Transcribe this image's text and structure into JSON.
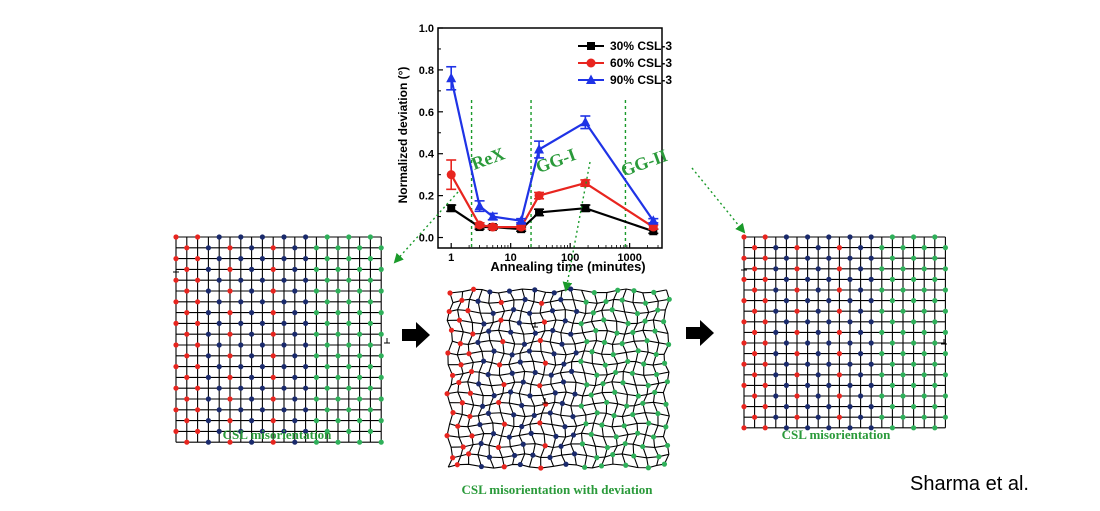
{
  "chart_data": {
    "type": "line",
    "ylabel": "Normalized deviation (°)",
    "xlabel": "Annealing time (minutes)",
    "x_scale": "log",
    "xlim": [
      0.6,
      3500
    ],
    "ylim": [
      -0.05,
      1.0
    ],
    "x_ticks": [
      1,
      10,
      100,
      1000
    ],
    "x_tick_labels": [
      "1",
      "10",
      "100",
      "1000"
    ],
    "y_ticks": [
      0.0,
      0.2,
      0.4,
      0.6,
      0.8,
      1.0
    ],
    "y_tick_labels": [
      "0.0",
      "0.2",
      "0.4",
      "0.6",
      "0.8",
      "1.0"
    ],
    "legend_position": "top-right",
    "series": [
      {
        "name": "30% CSL-3",
        "color": "#000000",
        "marker": "square",
        "x": [
          1,
          3,
          5,
          15,
          30,
          180,
          2500
        ],
        "y": [
          0.14,
          0.05,
          0.05,
          0.04,
          0.12,
          0.14,
          0.03
        ],
        "err": [
          0.015,
          0.01,
          0.01,
          0.01,
          0.015,
          0.015,
          0.01
        ]
      },
      {
        "name": "60% CSL-3",
        "color": "#e8251f",
        "marker": "circle",
        "x": [
          1,
          3,
          5,
          15,
          30,
          180,
          2500
        ],
        "y": [
          0.3,
          0.06,
          0.05,
          0.05,
          0.2,
          0.26,
          0.05
        ],
        "err": [
          0.07,
          0.01,
          0.01,
          0.01,
          0.015,
          0.015,
          0.01
        ]
      },
      {
        "name": "90% CSL-3",
        "color": "#1f33e6",
        "marker": "triangle",
        "x": [
          1,
          3,
          5,
          15,
          30,
          180,
          2500
        ],
        "y": [
          0.76,
          0.15,
          0.1,
          0.08,
          0.42,
          0.55,
          0.08
        ],
        "err": [
          0.055,
          0.025,
          0.015,
          0.01,
          0.04,
          0.03,
          0.01
        ]
      }
    ],
    "region_dividers_x": [
      2.2,
      22,
      850
    ],
    "region_labels": [
      {
        "text": "ReX",
        "x": 4.5,
        "y": 0.35
      },
      {
        "text": "GG-I",
        "x": 62,
        "y": 0.34
      },
      {
        "text": "GG-II",
        "x": 1900,
        "y": 0.33
      }
    ]
  },
  "labels": {
    "left_caption": "CSL misorientation",
    "middle_caption": "CSL misorientation with deviation",
    "right_caption": "CSL misorientation",
    "credit": "Sharma et al."
  },
  "colors": {
    "red_site": "#e8251f",
    "blue_site": "#1a2a6c",
    "green_site": "#2fb05a",
    "caption_green": "#2a9a3a",
    "arrow_green": "#1a9a2a"
  }
}
